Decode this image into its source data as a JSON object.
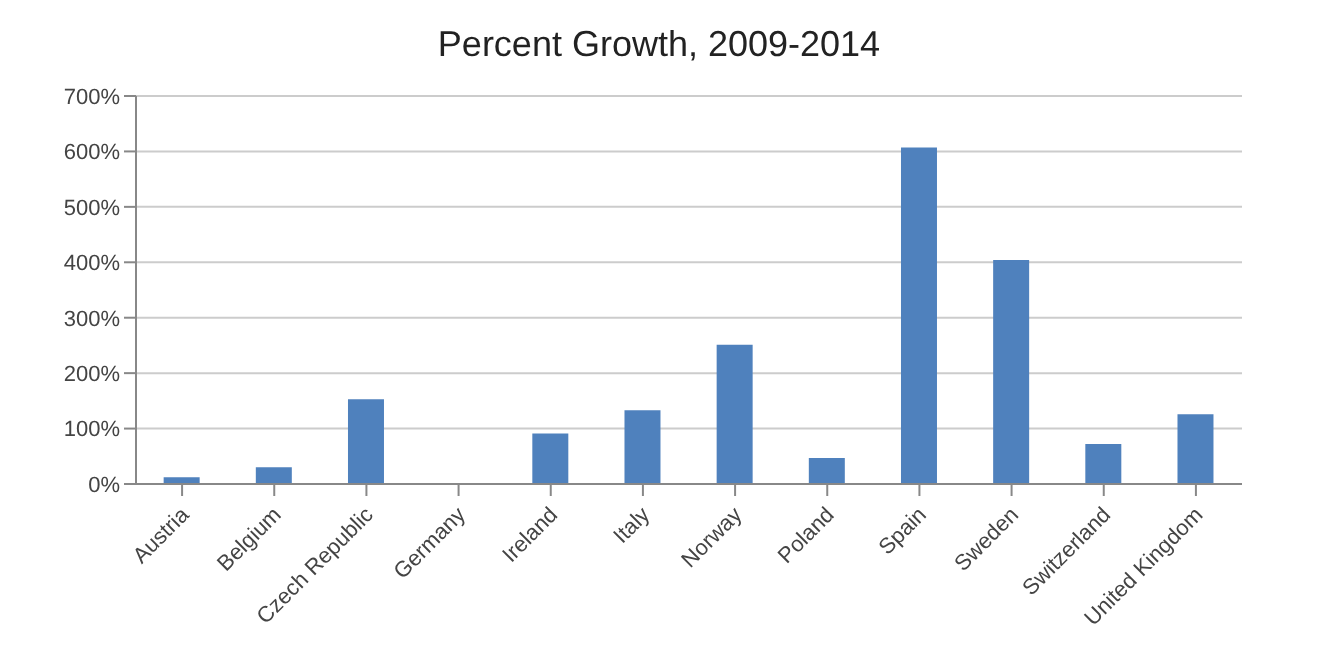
{
  "chart_data": {
    "type": "bar",
    "title": "Percent Growth, 2009-2014",
    "categories": [
      "Austria",
      "Belgium",
      "Czech Republic",
      "Germany",
      "Ireland",
      "Italy",
      "Norway",
      "Poland",
      "Spain",
      "Sweden",
      "Switzerland",
      "United Kingdom"
    ],
    "values": [
      12,
      30,
      153,
      0,
      91,
      133,
      251,
      47,
      607,
      404,
      72,
      126
    ],
    "color": "#4f81bd",
    "ylim": [
      0,
      700
    ],
    "yticks": [
      {
        "value": 0,
        "label": "0%"
      },
      {
        "value": 100,
        "label": "100%"
      },
      {
        "value": 200,
        "label": "200%"
      },
      {
        "value": 300,
        "label": "300%"
      },
      {
        "value": 400,
        "label": "400%"
      },
      {
        "value": 500,
        "label": "500%"
      },
      {
        "value": 600,
        "label": "600%"
      },
      {
        "value": 700,
        "label": "700%"
      }
    ],
    "grid": "y"
  }
}
